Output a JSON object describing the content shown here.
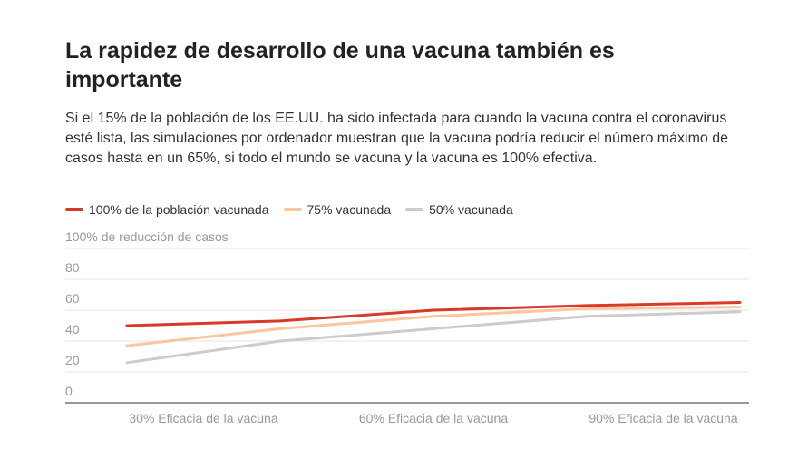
{
  "chart_data": {
    "type": "line",
    "title": "La rapidez de desarrollo de una vacuna también es importante",
    "subtitle": "Si el 15% de la población de los EE.UU. ha sido infectada para cuando la vacuna contra el coronavirus esté lista, las simulaciones por ordenador muestran que la vacuna podría reducir el número máximo de casos hasta en un 65%, si todo el mundo se vacuna y la vacuna es 100% efectiva.",
    "x": [
      20,
      40,
      60,
      80,
      100
    ],
    "xlim": [
      20,
      100
    ],
    "xticks": [
      {
        "value": 30,
        "label": "30% Eficacia de la vacuna"
      },
      {
        "value": 60,
        "label": "60% Eficacia de la vacuna"
      },
      {
        "value": 90,
        "label": "90% Eficacia de la vacuna"
      }
    ],
    "ylim": [
      0,
      100
    ],
    "yticks": [
      0,
      20,
      40,
      60,
      80,
      {
        "value": 100,
        "label": "100% de reducción de casos"
      }
    ],
    "grid": true,
    "series": [
      {
        "name": "100% de la población vacunada",
        "color": "#d83a2a",
        "values": [
          50,
          53,
          60,
          63,
          65
        ]
      },
      {
        "name": "75% vacunada",
        "color": "#f9c6a0",
        "values": [
          37,
          48,
          56,
          61,
          62
        ]
      },
      {
        "name": "50% vacunada",
        "color": "#cccccc",
        "values": [
          26,
          40,
          48,
          56,
          59
        ]
      }
    ]
  }
}
